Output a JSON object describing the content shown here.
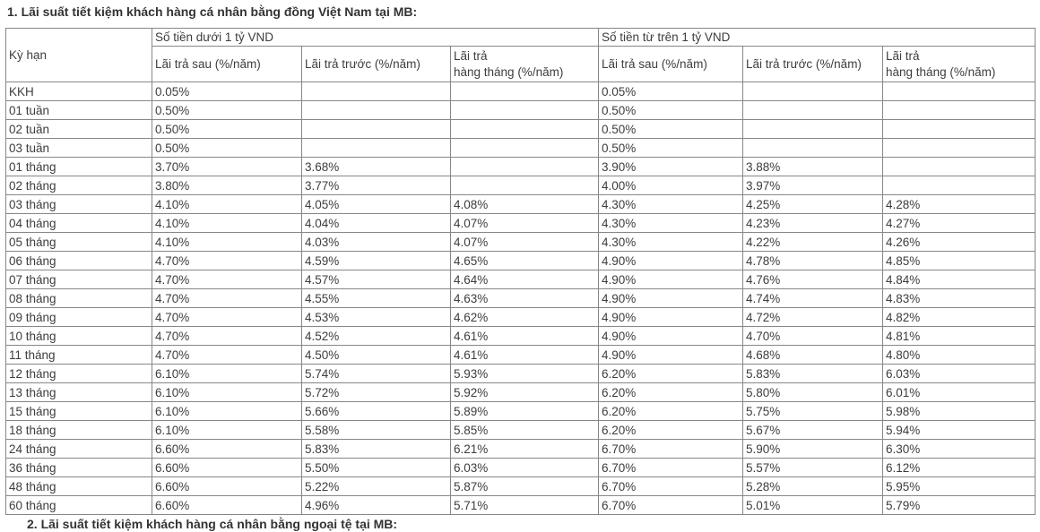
{
  "page": {
    "title": "1. Lãi suất tiết kiệm khách hàng cá nhân bằng đồng Việt Nam tại MB:"
  },
  "table": {
    "term_header": "Kỳ hạn",
    "groups": [
      {
        "label": "Số tiền dưới 1 tỷ VND"
      },
      {
        "label": "Số tiền từ trên 1 tỷ VND"
      }
    ],
    "sub_headers": [
      "Lãi trả sau (%/năm)",
      "Lãi trả trước (%/năm)",
      "Lãi trả\nhàng tháng (%/năm)",
      "Lãi trả sau (%/năm)",
      "Lãi trả trước (%/năm)",
      "Lãi trả\nhàng tháng (%/năm)"
    ],
    "rows": [
      {
        "term": "KKH",
        "values": [
          "0.05%",
          "",
          "",
          "0.05%",
          "",
          ""
        ]
      },
      {
        "term": "01 tuần",
        "values": [
          "0.50%",
          "",
          "",
          "0.50%",
          "",
          ""
        ]
      },
      {
        "term": "02 tuần",
        "values": [
          "0.50%",
          "",
          "",
          "0.50%",
          "",
          ""
        ]
      },
      {
        "term": "03 tuần",
        "values": [
          "0.50%",
          "",
          "",
          "0.50%",
          "",
          ""
        ]
      },
      {
        "term": "01 tháng",
        "values": [
          "3.70%",
          "3.68%",
          "",
          "3.90%",
          "3.88%",
          ""
        ]
      },
      {
        "term": "02 tháng",
        "values": [
          "3.80%",
          "3.77%",
          "",
          "4.00%",
          "3.97%",
          ""
        ]
      },
      {
        "term": "03 tháng",
        "values": [
          "4.10%",
          "4.05%",
          "4.08%",
          "4.30%",
          "4.25%",
          "4.28%"
        ]
      },
      {
        "term": "04 tháng",
        "values": [
          "4.10%",
          "4.04%",
          "4.07%",
          "4.30%",
          "4.23%",
          "4.27%"
        ]
      },
      {
        "term": "05 tháng",
        "values": [
          "4.10%",
          "4.03%",
          "4.07%",
          "4.30%",
          "4.22%",
          "4.26%"
        ]
      },
      {
        "term": "06 tháng",
        "values": [
          "4.70%",
          "4.59%",
          "4.65%",
          "4.90%",
          "4.78%",
          "4.85%"
        ]
      },
      {
        "term": "07 tháng",
        "values": [
          "4.70%",
          "4.57%",
          "4.64%",
          "4.90%",
          "4.76%",
          "4.84%"
        ]
      },
      {
        "term": "08 tháng",
        "values": [
          "4.70%",
          "4.55%",
          "4.63%",
          "4.90%",
          "4.74%",
          "4.83%"
        ]
      },
      {
        "term": "09 tháng",
        "values": [
          "4.70%",
          "4.53%",
          "4.62%",
          "4.90%",
          "4.72%",
          "4.82%"
        ]
      },
      {
        "term": "10 tháng",
        "values": [
          "4.70%",
          "4.52%",
          "4.61%",
          "4.90%",
          "4.70%",
          "4.81%"
        ]
      },
      {
        "term": "11 tháng",
        "values": [
          "4.70%",
          "4.50%",
          "4.61%",
          "4.90%",
          "4.68%",
          "4.80%"
        ]
      },
      {
        "term": "12 tháng",
        "values": [
          "6.10%",
          "5.74%",
          "5.93%",
          "6.20%",
          "5.83%",
          "6.03%"
        ]
      },
      {
        "term": "13 tháng",
        "values": [
          "6.10%",
          "5.72%",
          "5.92%",
          "6.20%",
          "5.80%",
          "6.01%"
        ]
      },
      {
        "term": "15 tháng",
        "values": [
          "6.10%",
          "5.66%",
          "5.89%",
          "6.20%",
          "5.75%",
          "5.98%"
        ]
      },
      {
        "term": "18 tháng",
        "values": [
          "6.10%",
          "5.58%",
          "5.85%",
          "6.20%",
          "5.67%",
          "5.94%"
        ]
      },
      {
        "term": "24 tháng",
        "values": [
          "6.60%",
          "5.83%",
          "6.21%",
          "6.70%",
          "5.90%",
          "6.30%"
        ]
      },
      {
        "term": "36 tháng",
        "values": [
          "6.60%",
          "5.50%",
          "6.03%",
          "6.70%",
          "5.57%",
          "6.12%"
        ]
      },
      {
        "term": "48 tháng",
        "values": [
          "6.60%",
          "5.22%",
          "5.87%",
          "6.70%",
          "5.28%",
          "5.95%"
        ]
      },
      {
        "term": "60 tháng",
        "values": [
          "6.60%",
          "4.96%",
          "5.71%",
          "6.70%",
          "5.01%",
          "5.79%"
        ]
      }
    ]
  },
  "footer": {
    "next_section_title_partial": "2. Lãi suất tiết kiệm khách hàng cá nhân bằng ngoại tệ tại MB:"
  },
  "colors": {
    "title_text": "#333333",
    "cell_text": "#3d3d3d",
    "table_border": "#878787",
    "background": "#ffffff"
  }
}
